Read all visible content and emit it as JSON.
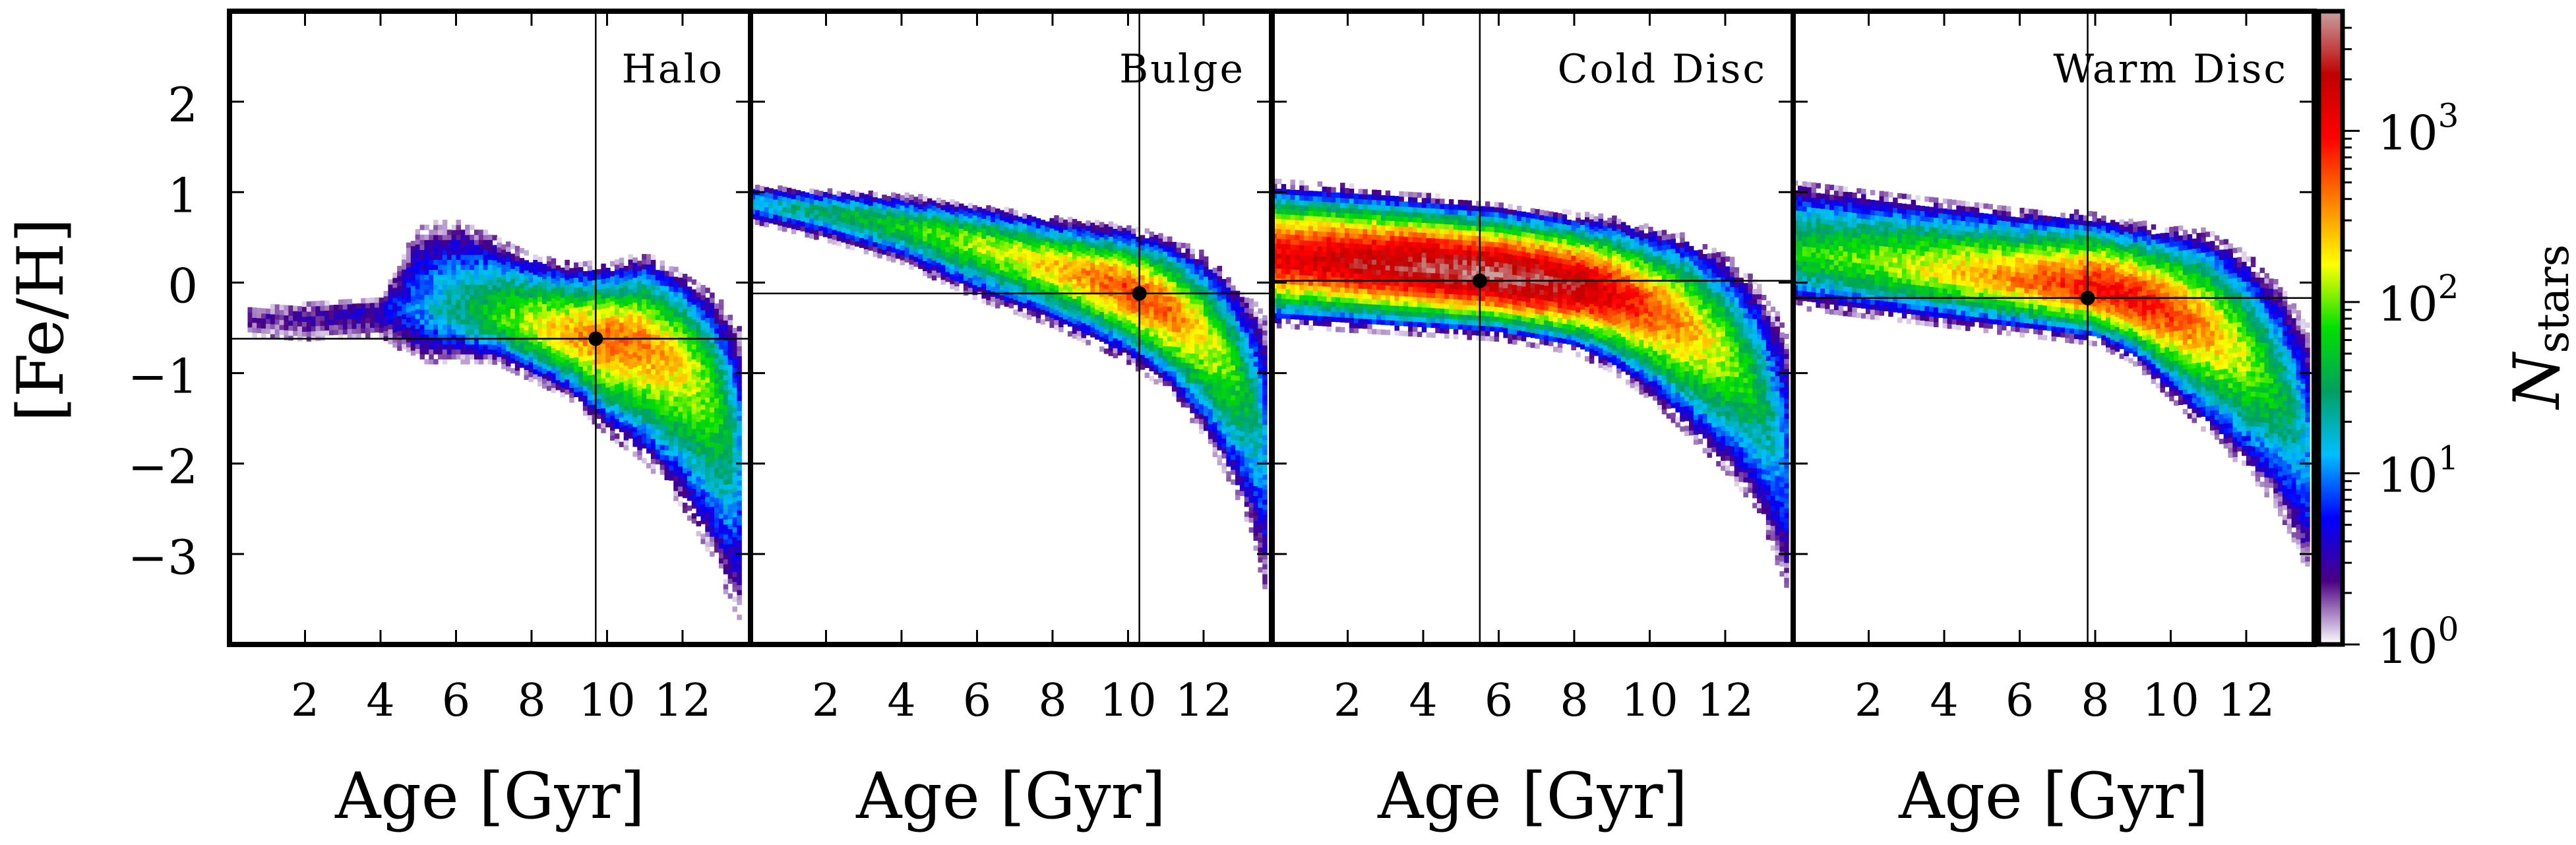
{
  "chart_data": {
    "type": "heatmap",
    "shared": {
      "ylabel": "[Fe/H]",
      "ylim": [
        -4,
        3
      ],
      "yticks": [
        -3,
        -2,
        -1,
        0,
        1,
        2
      ],
      "ytick_labels": [
        "−3",
        "−2",
        "−1",
        "0",
        "1",
        "2"
      ],
      "xlabel": "Age [Gyr]",
      "xlim": [
        0,
        13.8
      ],
      "xticks": [
        2,
        4,
        6,
        8,
        10,
        12
      ],
      "xtick_labels": [
        "2",
        "4",
        "6",
        "8",
        "10",
        "12"
      ]
    },
    "colorbar": {
      "label": "N",
      "label_sub": "stars",
      "scale": "log",
      "range": [
        1,
        5000
      ],
      "ticks": [
        1,
        10,
        100,
        1000
      ],
      "tick_base": "10",
      "tick_exponents": [
        "0",
        "1",
        "2",
        "3"
      ],
      "colormap": [
        "#ffffff",
        "#4b0082",
        "#0000ff",
        "#00bfff",
        "#00a060",
        "#00e000",
        "#ffff00",
        "#ff8000",
        "#ff0000",
        "#c00000",
        "#c8a0a0"
      ]
    },
    "panels": [
      {
        "name": "Halo",
        "median_age": 9.7,
        "median_feh": -0.62,
        "envelope": {
          "age": [
            0.5,
            2,
            4,
            5,
            6,
            7,
            8,
            9,
            10,
            11,
            12,
            12.7,
            13.2,
            13.6
          ],
          "upper": [
            -0.3,
            -0.25,
            -0.2,
            0.6,
            0.7,
            0.5,
            0.3,
            0.2,
            0.2,
            0.3,
            0.1,
            -0.1,
            -0.3,
            -0.6
          ],
          "lower": [
            -0.6,
            -0.65,
            -0.6,
            -0.9,
            -0.9,
            -0.9,
            -1.1,
            -1.3,
            -1.7,
            -2.0,
            -2.5,
            -3.0,
            -3.5,
            -3.8
          ],
          "center": [
            -0.4,
            -0.4,
            -0.35,
            -0.3,
            -0.35,
            -0.4,
            -0.5,
            -0.6,
            -0.65,
            -0.7,
            -0.9,
            -1.2,
            -1.6,
            -2.0
          ],
          "peak_log": [
            0.3,
            0.4,
            0.6,
            1.0,
            1.4,
            1.8,
            2.2,
            2.5,
            2.7,
            2.6,
            2.3,
            2.0,
            1.6,
            1.0
          ]
        }
      },
      {
        "name": "Bulge",
        "median_age": 10.3,
        "median_feh": -0.12,
        "envelope": {
          "age": [
            0.1,
            2,
            4,
            6,
            8,
            9,
            10,
            11,
            12,
            12.8,
            13.3,
            13.7
          ],
          "upper": [
            1.05,
            1.0,
            0.95,
            0.85,
            0.7,
            0.65,
            0.6,
            0.5,
            0.3,
            0.0,
            -0.2,
            -0.4
          ],
          "lower": [
            0.65,
            0.45,
            0.2,
            -0.2,
            -0.5,
            -0.7,
            -0.9,
            -1.2,
            -1.7,
            -2.3,
            -2.8,
            -3.6
          ],
          "center": [
            0.85,
            0.75,
            0.6,
            0.4,
            0.15,
            0.05,
            -0.1,
            -0.3,
            -0.6,
            -1.0,
            -1.4,
            -1.9
          ],
          "peak_log": [
            1.2,
            1.5,
            1.8,
            2.1,
            2.4,
            2.6,
            2.8,
            2.7,
            2.3,
            1.9,
            1.5,
            1.0
          ]
        }
      },
      {
        "name": "Cold Disc",
        "median_age": 5.5,
        "median_feh": 0.02,
        "envelope": {
          "age": [
            0.1,
            2,
            4,
            6,
            8,
            9,
            10,
            11,
            12,
            12.8,
            13.3,
            13.7
          ],
          "upper": [
            1.1,
            1.05,
            0.95,
            0.85,
            0.75,
            0.7,
            0.6,
            0.5,
            0.3,
            0.0,
            -0.3,
            -0.6
          ],
          "lower": [
            -0.5,
            -0.55,
            -0.6,
            -0.65,
            -0.8,
            -1.0,
            -1.3,
            -1.7,
            -2.1,
            -2.5,
            -3.0,
            -3.6
          ],
          "center": [
            0.25,
            0.2,
            0.15,
            0.05,
            -0.05,
            -0.15,
            -0.3,
            -0.5,
            -0.8,
            -1.2,
            -1.6,
            -2.0
          ],
          "peak_log": [
            3.1,
            3.3,
            3.5,
            3.6,
            3.4,
            3.1,
            2.8,
            2.5,
            2.1,
            1.7,
            1.3,
            0.9
          ]
        }
      },
      {
        "name": "Warm Disc",
        "median_age": 7.8,
        "median_feh": -0.17,
        "envelope": {
          "age": [
            0.1,
            2,
            4,
            6,
            8,
            9,
            10,
            11,
            12,
            12.8,
            13.3,
            13.7
          ],
          "upper": [
            1.1,
            1.0,
            0.9,
            0.8,
            0.75,
            0.65,
            0.6,
            0.55,
            0.3,
            0.0,
            -0.3,
            -0.5
          ],
          "lower": [
            -0.3,
            -0.4,
            -0.5,
            -0.6,
            -0.7,
            -0.9,
            -1.3,
            -1.7,
            -2.1,
            -2.5,
            -2.9,
            -3.4
          ],
          "center": [
            0.3,
            0.2,
            0.1,
            0.0,
            -0.1,
            -0.2,
            -0.35,
            -0.55,
            -0.85,
            -1.2,
            -1.5,
            -1.9
          ],
          "peak_log": [
            1.8,
            2.0,
            2.3,
            2.6,
            3.0,
            3.0,
            2.8,
            2.5,
            2.1,
            1.7,
            1.4,
            1.0
          ]
        }
      }
    ]
  }
}
